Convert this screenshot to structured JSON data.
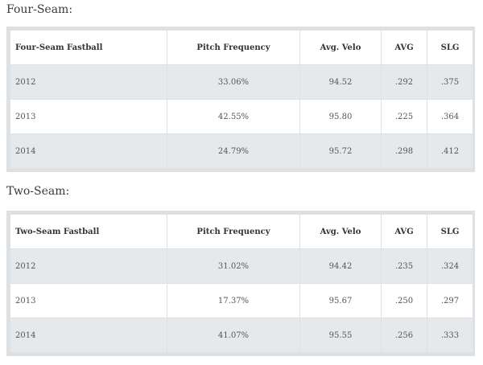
{
  "tables": [
    {
      "title": "Four-Seam:",
      "headers": [
        "Four-Seam Fastball",
        "Pitch Frequency",
        "Avg. Velo",
        "AVG",
        "SLG"
      ],
      "rows": [
        [
          "2012",
          "33.06%",
          "94.52",
          ".292",
          ".375"
        ],
        [
          "2013",
          "42.55%",
          "95.80",
          ".225",
          ".364"
        ],
        [
          "2014",
          "24.79%",
          "95.72",
          ".298",
          ".412"
        ]
      ]
    },
    {
      "title": "Two-Seam:",
      "headers": [
        "Two-Seam Fastball",
        "Pitch Frequency",
        "Avg. Velo",
        "AVG",
        "SLG"
      ],
      "rows": [
        [
          "2012",
          "31.02%",
          "94.42",
          ".235",
          ".324"
        ],
        [
          "2013",
          "17.37%",
          "95.67",
          ".250",
          ".297"
        ],
        [
          "2014",
          "41.07%",
          "95.55",
          ".256",
          ".333"
        ]
      ]
    }
  ]
}
